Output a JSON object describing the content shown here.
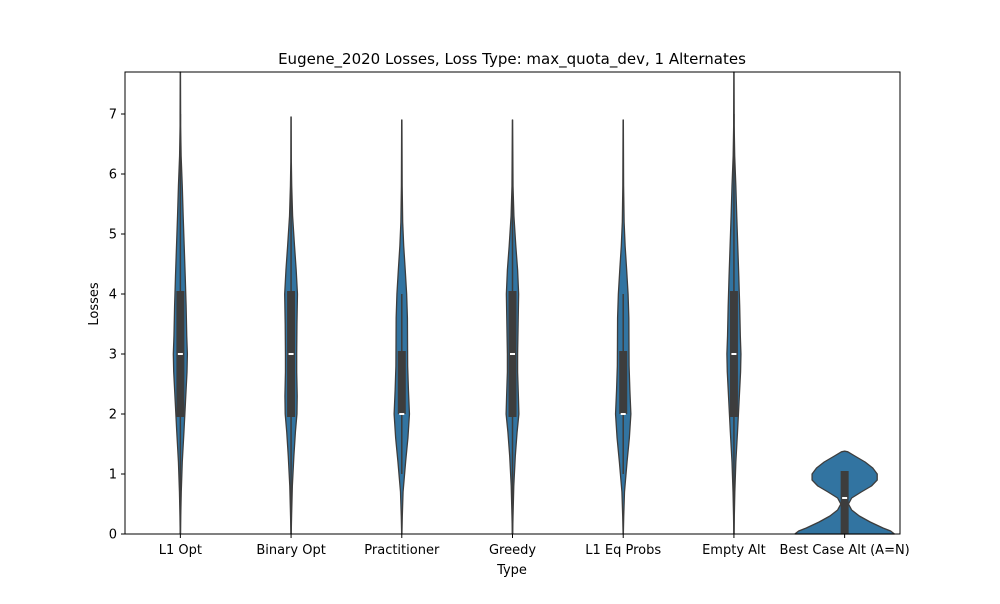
{
  "chart_data": {
    "type": "violin",
    "title": "Eugene_2020 Losses, Loss Type: max_quota_dev, 1 Alternates",
    "xlabel": "Type",
    "ylabel": "Losses",
    "ylim": [
      0,
      7.7
    ],
    "yticks": [
      0,
      1,
      2,
      3,
      4,
      5,
      6,
      7
    ],
    "grid": false,
    "fill_color": "#3274a1",
    "edge_color": "#3d3d3d",
    "categories": [
      "L1 Opt",
      "Binary Opt",
      "Practitioner",
      "Greedy",
      "L1 Eq Probs",
      "Empty Alt",
      "Best Case Alt (A=N)"
    ],
    "violins": [
      {
        "category": "L1 Opt",
        "median": 3,
        "q1": 1.95,
        "q3": 4.05,
        "whisker_low": 0,
        "whisker_high": 7,
        "profile": [
          [
            0,
            0.01
          ],
          [
            0.3,
            0.03
          ],
          [
            0.7,
            0.07
          ],
          [
            1.2,
            0.15
          ],
          [
            1.7,
            0.28
          ],
          [
            2.2,
            0.4
          ],
          [
            2.7,
            0.52
          ],
          [
            3.0,
            0.55
          ],
          [
            3.3,
            0.5
          ],
          [
            3.8,
            0.45
          ],
          [
            4.3,
            0.38
          ],
          [
            4.8,
            0.3
          ],
          [
            5.3,
            0.22
          ],
          [
            5.8,
            0.15
          ],
          [
            6.3,
            0.06
          ],
          [
            6.8,
            0.02
          ],
          [
            7.0,
            0.02
          ],
          [
            7.7,
            0.01
          ]
        ]
      },
      {
        "category": "Binary Opt",
        "median": 3,
        "q1": 1.95,
        "q3": 4.05,
        "whisker_low": 0,
        "whisker_high": 6,
        "profile": [
          [
            0,
            0.01
          ],
          [
            0.3,
            0.04
          ],
          [
            0.8,
            0.1
          ],
          [
            1.3,
            0.22
          ],
          [
            1.7,
            0.34
          ],
          [
            2.0,
            0.46
          ],
          [
            2.3,
            0.48
          ],
          [
            2.7,
            0.44
          ],
          [
            3.0,
            0.44
          ],
          [
            3.5,
            0.46
          ],
          [
            4.0,
            0.5
          ],
          [
            4.4,
            0.4
          ],
          [
            4.8,
            0.27
          ],
          [
            5.3,
            0.12
          ],
          [
            5.8,
            0.05
          ],
          [
            6.2,
            0.02
          ],
          [
            6.95,
            0.01
          ]
        ]
      },
      {
        "category": "Practitioner",
        "median": 2,
        "q1": 2,
        "q3": 3.05,
        "whisker_low": 1,
        "whisker_high": 4,
        "profile": [
          [
            0,
            0.01
          ],
          [
            0.3,
            0.04
          ],
          [
            0.7,
            0.1
          ],
          [
            1.2,
            0.3
          ],
          [
            1.6,
            0.48
          ],
          [
            2.0,
            0.6
          ],
          [
            2.4,
            0.52
          ],
          [
            2.8,
            0.46
          ],
          [
            3.2,
            0.45
          ],
          [
            3.6,
            0.44
          ],
          [
            4.0,
            0.38
          ],
          [
            4.4,
            0.27
          ],
          [
            4.8,
            0.15
          ],
          [
            5.2,
            0.07
          ],
          [
            5.8,
            0.03
          ],
          [
            6.9,
            0.01
          ]
        ]
      },
      {
        "category": "Greedy",
        "median": 3,
        "q1": 1.95,
        "q3": 4.05,
        "whisker_low": 0,
        "whisker_high": 6,
        "profile": [
          [
            0,
            0.01
          ],
          [
            0.3,
            0.04
          ],
          [
            0.8,
            0.1
          ],
          [
            1.3,
            0.22
          ],
          [
            1.7,
            0.36
          ],
          [
            2.0,
            0.5
          ],
          [
            2.3,
            0.46
          ],
          [
            2.7,
            0.4
          ],
          [
            3.0,
            0.4
          ],
          [
            3.5,
            0.44
          ],
          [
            4.0,
            0.48
          ],
          [
            4.4,
            0.4
          ],
          [
            4.8,
            0.26
          ],
          [
            5.3,
            0.11
          ],
          [
            5.8,
            0.04
          ],
          [
            6.9,
            0.01
          ]
        ]
      },
      {
        "category": "L1 Eq Probs",
        "median": 2,
        "q1": 2,
        "q3": 3.05,
        "whisker_low": 1,
        "whisker_high": 4,
        "profile": [
          [
            0,
            0.01
          ],
          [
            0.3,
            0.04
          ],
          [
            0.7,
            0.1
          ],
          [
            1.2,
            0.3
          ],
          [
            1.6,
            0.48
          ],
          [
            2.0,
            0.6
          ],
          [
            2.4,
            0.52
          ],
          [
            2.8,
            0.46
          ],
          [
            3.2,
            0.45
          ],
          [
            3.6,
            0.44
          ],
          [
            4.0,
            0.38
          ],
          [
            4.4,
            0.27
          ],
          [
            4.8,
            0.15
          ],
          [
            5.2,
            0.07
          ],
          [
            5.8,
            0.03
          ],
          [
            6.9,
            0.01
          ]
        ]
      },
      {
        "category": "Empty Alt",
        "median": 3,
        "q1": 1.95,
        "q3": 4.05,
        "whisker_low": 0,
        "whisker_high": 7,
        "profile": [
          [
            0,
            0.01
          ],
          [
            0.3,
            0.03
          ],
          [
            0.7,
            0.07
          ],
          [
            1.2,
            0.15
          ],
          [
            1.7,
            0.28
          ],
          [
            2.2,
            0.4
          ],
          [
            2.7,
            0.52
          ],
          [
            3.0,
            0.55
          ],
          [
            3.3,
            0.5
          ],
          [
            3.8,
            0.45
          ],
          [
            4.3,
            0.38
          ],
          [
            4.8,
            0.3
          ],
          [
            5.3,
            0.22
          ],
          [
            5.8,
            0.15
          ],
          [
            6.3,
            0.06
          ],
          [
            6.8,
            0.02
          ],
          [
            7.0,
            0.02
          ],
          [
            7.7,
            0.01
          ]
        ]
      },
      {
        "category": "Best Case Alt (A=N)",
        "median": 0.6,
        "q1": 0,
        "q3": 1.05,
        "whisker_low": 0,
        "whisker_high": 1.05,
        "profile": [
          [
            0,
            3.9
          ],
          [
            0.05,
            3.6
          ],
          [
            0.1,
            3.0
          ],
          [
            0.2,
            2.0
          ],
          [
            0.3,
            1.15
          ],
          [
            0.4,
            0.55
          ],
          [
            0.5,
            0.3
          ],
          [
            0.6,
            0.55
          ],
          [
            0.7,
            1.3
          ],
          [
            0.8,
            2.1
          ],
          [
            0.9,
            2.55
          ],
          [
            1.0,
            2.55
          ],
          [
            1.1,
            2.2
          ],
          [
            1.2,
            1.6
          ],
          [
            1.3,
            0.8
          ],
          [
            1.37,
            0.25
          ],
          [
            1.38,
            0.01
          ]
        ]
      }
    ]
  }
}
